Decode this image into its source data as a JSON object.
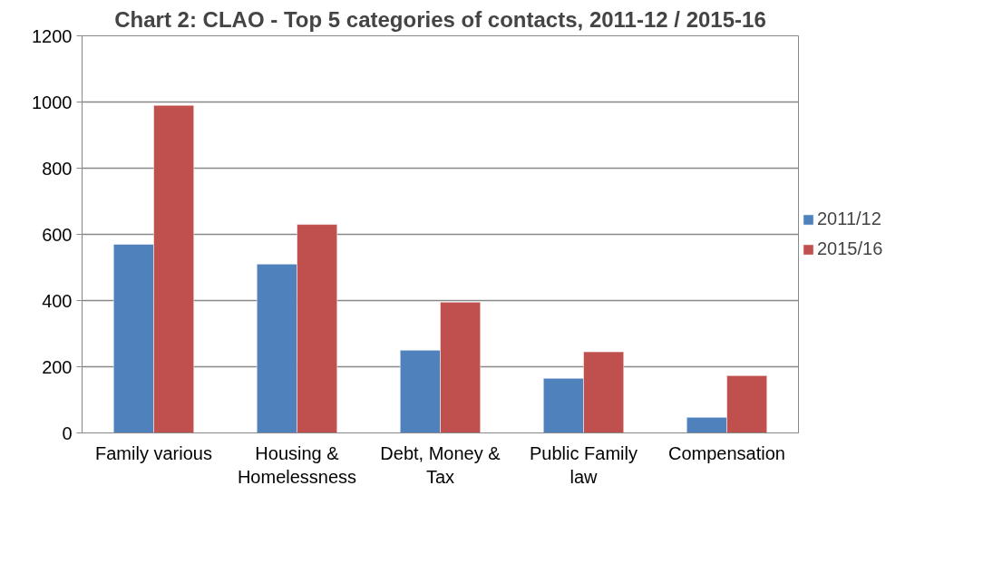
{
  "chart_data": {
    "type": "bar",
    "title": "Chart 2: CLAO - Top 5 categories of contacts, 2011-12 / 2015-16",
    "categories": [
      "Family various",
      "Housing & Homelessness",
      "Debt, Money & Tax",
      "Public Family law",
      "Compensation"
    ],
    "series": [
      {
        "name": "2011/12",
        "color": "#4f81bd",
        "values": [
          570,
          510,
          250,
          165,
          47
        ]
      },
      {
        "name": "2015/16",
        "color": "#c0504d",
        "values": [
          990,
          630,
          395,
          245,
          173
        ]
      }
    ],
    "ylim": [
      0,
      1200
    ],
    "yticks": [
      0,
      200,
      400,
      600,
      800,
      1000,
      1200
    ],
    "grid": "y",
    "legend": "right"
  }
}
